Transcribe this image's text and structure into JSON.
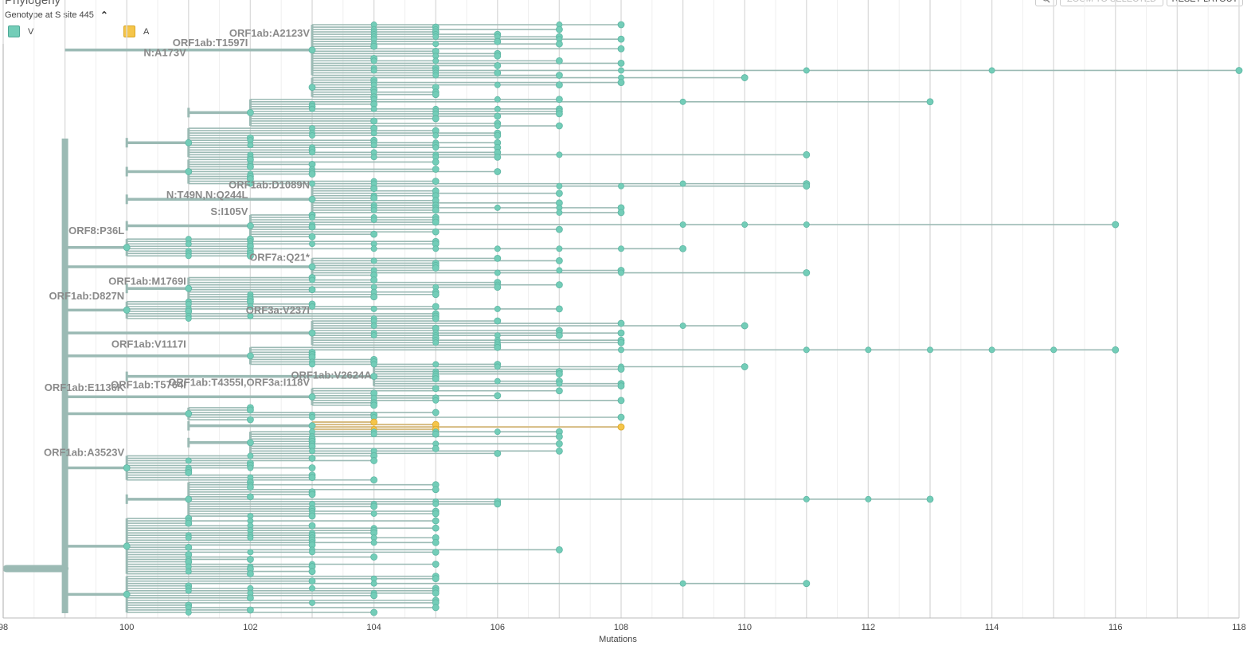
{
  "panel": {
    "title": "Phylogeny",
    "color_by": "Genotype at S site 445",
    "buttons": {
      "zoom_icon": "magnifier-icon",
      "zoom_selected": "ZOOM TO SELECTED",
      "reset_layout": "RESET LAYOUT"
    }
  },
  "legend": [
    {
      "label": "V",
      "color": "#73cdb8"
    },
    {
      "label": "A",
      "color": "#f5c54a"
    }
  ],
  "colors": {
    "branch": "#9bbab4",
    "tip_v": "#73cdb8",
    "tip_a": "#f5c54a",
    "branch_a": "#d6bc82",
    "grid": "#e2e2e2"
  },
  "chart_data": {
    "type": "tree",
    "xlabel": "Mutations",
    "xlim": [
      98,
      118
    ],
    "x_ticks": [
      98,
      100,
      102,
      104,
      106,
      108,
      110,
      112,
      114,
      116,
      118
    ],
    "x_tick_labels": [
      "98",
      "100",
      "102",
      "104",
      "106",
      "108",
      "110",
      "112",
      "114",
      "116",
      "118"
    ],
    "tip_count": 245,
    "branch_labels": [
      {
        "text": "ORF1ab:A2123V",
        "x": 103,
        "tip": 6
      },
      {
        "text": "ORF1ab:T1597I",
        "x": 102,
        "tip": 10
      },
      {
        "text": "N:A173V",
        "x": 101,
        "tip": 14
      },
      {
        "text": "ORF1ab:D1089N",
        "x": 103,
        "tip": 69
      },
      {
        "text": "N:T49N,N:Q244L",
        "x": 102,
        "tip": 73
      },
      {
        "text": "S:I105V",
        "x": 102,
        "tip": 80
      },
      {
        "text": "ORF8:P36L",
        "x": 100,
        "tip": 88
      },
      {
        "text": "ORF7a:Q21*",
        "x": 103,
        "tip": 99
      },
      {
        "text": "ORF1ab:M1769I",
        "x": 101,
        "tip": 109
      },
      {
        "text": "ORF1ab:D827N",
        "x": 100,
        "tip": 115
      },
      {
        "text": "ORF3a:V237I",
        "x": 103,
        "tip": 121
      },
      {
        "text": "ORF1ab:V1117I",
        "x": 101,
        "tip": 135
      },
      {
        "text": "ORF1ab:V2624A",
        "x": 104,
        "tip": 148
      },
      {
        "text": "ORF1ab:T4355I,ORF3a:I118V",
        "x": 103,
        "tip": 151
      },
      {
        "text": "ORF1ab:T5764I",
        "x": 101,
        "tip": 152
      },
      {
        "text": "ORF1ab:E1136K",
        "x": 100,
        "tip": 153
      },
      {
        "text": "ORF1ab:A3523V",
        "x": 100,
        "tip": 180
      }
    ],
    "clades": [
      {
        "root": 99.0,
        "x": 103.0,
        "tips": [
          0,
          21
        ],
        "max_tip": 118.0,
        "color": "V"
      },
      {
        "root": 103.0,
        "x": 103.0,
        "tips": [
          22,
          30
        ],
        "max_tip": 110.0,
        "color": "V"
      },
      {
        "root": 101.0,
        "x": 102.0,
        "tips": [
          31,
          42
        ],
        "max_tip": 113.0,
        "color": "V"
      },
      {
        "root": 100.0,
        "x": 101.0,
        "tips": [
          43,
          55
        ],
        "max_tip": 111.0,
        "color": "V"
      },
      {
        "root": 100.0,
        "x": 101.0,
        "tips": [
          56,
          66
        ],
        "max_tip": 111.0,
        "color": "V"
      },
      {
        "root": 100.0,
        "x": 103.0,
        "tips": [
          67,
          78
        ],
        "max_tip": 111.0,
        "color": "V"
      },
      {
        "root": 100.0,
        "x": 102.0,
        "tips": [
          79,
          88
        ],
        "max_tip": 116.0,
        "color": "V"
      },
      {
        "root": 99.0,
        "x": 100.0,
        "tips": [
          89,
          96
        ],
        "max_tip": 109.0,
        "color": "V"
      },
      {
        "root": 99.0,
        "x": 103.0,
        "tips": [
          97,
          104
        ],
        "max_tip": 111.0,
        "color": "V"
      },
      {
        "root": 100.0,
        "x": 101.0,
        "tips": [
          105,
          114
        ],
        "max_tip": 107.0,
        "color": "V"
      },
      {
        "root": 99.0,
        "x": 100.0,
        "tips": [
          115,
          122
        ],
        "max_tip": 107.0,
        "color": "V"
      },
      {
        "root": 99.0,
        "x": 103.0,
        "tips": [
          123,
          133
        ],
        "max_tip": 110.0,
        "color": "V"
      },
      {
        "root": 99.0,
        "x": 102.0,
        "tips": [
          134,
          141
        ],
        "max_tip": 116.0,
        "color": "V"
      },
      {
        "root": 100.0,
        "x": 104.0,
        "tips": [
          142,
          150
        ],
        "max_tip": 110.0,
        "color": "V"
      },
      {
        "root": 99.0,
        "x": 103.0,
        "tips": [
          151,
          158
        ],
        "max_tip": 108.0,
        "color": "V"
      },
      {
        "root": 99.0,
        "x": 101.0,
        "tips": [
          159,
          164
        ],
        "max_tip": 108.0,
        "color": "V"
      },
      {
        "root": 101.0,
        "x": 103.0,
        "tips": [
          165,
          168
        ],
        "max_tip": 108.0,
        "color": "A"
      },
      {
        "root": 101.0,
        "x": 102.0,
        "tips": [
          169,
          178
        ],
        "max_tip": 107.0,
        "color": "V"
      },
      {
        "root": 99.0,
        "x": 100.0,
        "tips": [
          179,
          189
        ],
        "max_tip": 104.0,
        "color": "V"
      },
      {
        "root": 100.0,
        "x": 101.0,
        "tips": [
          190,
          204
        ],
        "max_tip": 113.0,
        "color": "V"
      },
      {
        "root": 99.0,
        "x": 100.0,
        "tips": [
          205,
          228
        ],
        "max_tip": 107.0,
        "color": "V"
      },
      {
        "root": 99.0,
        "x": 100.0,
        "tips": [
          229,
          244
        ],
        "max_tip": 111.0,
        "color": "V"
      }
    ]
  }
}
